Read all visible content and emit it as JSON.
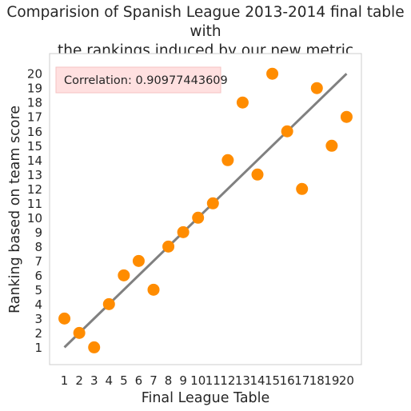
{
  "chart_data": {
    "type": "scatter",
    "title_line1": "Comparision of Spanish League 2013-2014 final table with",
    "title_line2": "the rankings induced by our new metric",
    "xlabel": "Final League Table",
    "ylabel": "Ranking based on team score",
    "xticks": [
      1,
      2,
      3,
      4,
      5,
      6,
      7,
      8,
      9,
      10,
      11,
      12,
      13,
      14,
      15,
      16,
      17,
      18,
      19,
      20
    ],
    "yticks": [
      1,
      2,
      3,
      4,
      5,
      6,
      7,
      8,
      9,
      10,
      11,
      12,
      13,
      14,
      15,
      16,
      17,
      18,
      19,
      20
    ],
    "xlim": [
      0,
      21
    ],
    "ylim": [
      -0.2,
      21.4
    ],
    "grid": false,
    "points": [
      {
        "x": 1,
        "y": 3
      },
      {
        "x": 2,
        "y": 2
      },
      {
        "x": 3,
        "y": 1
      },
      {
        "x": 4,
        "y": 4
      },
      {
        "x": 5,
        "y": 6
      },
      {
        "x": 6,
        "y": 7
      },
      {
        "x": 7,
        "y": 5
      },
      {
        "x": 8,
        "y": 8
      },
      {
        "x": 9,
        "y": 9
      },
      {
        "x": 10,
        "y": 10
      },
      {
        "x": 11,
        "y": 11
      },
      {
        "x": 12,
        "y": 14
      },
      {
        "x": 13,
        "y": 18
      },
      {
        "x": 14,
        "y": 13
      },
      {
        "x": 15,
        "y": 20
      },
      {
        "x": 16,
        "y": 16
      },
      {
        "x": 17,
        "y": 12
      },
      {
        "x": 18,
        "y": 19
      },
      {
        "x": 19,
        "y": 15
      },
      {
        "x": 20,
        "y": 17
      }
    ],
    "reference_line": {
      "from": [
        1,
        1
      ],
      "to": [
        20,
        20
      ]
    },
    "annotation": "Correlation: 0.90977443609",
    "colors": {
      "points": "#ff8c00",
      "line": "#808080",
      "annotation_bg": "#ffe0e0",
      "annotation_border": "#f4c2c2",
      "frame": "#cccccc"
    }
  }
}
